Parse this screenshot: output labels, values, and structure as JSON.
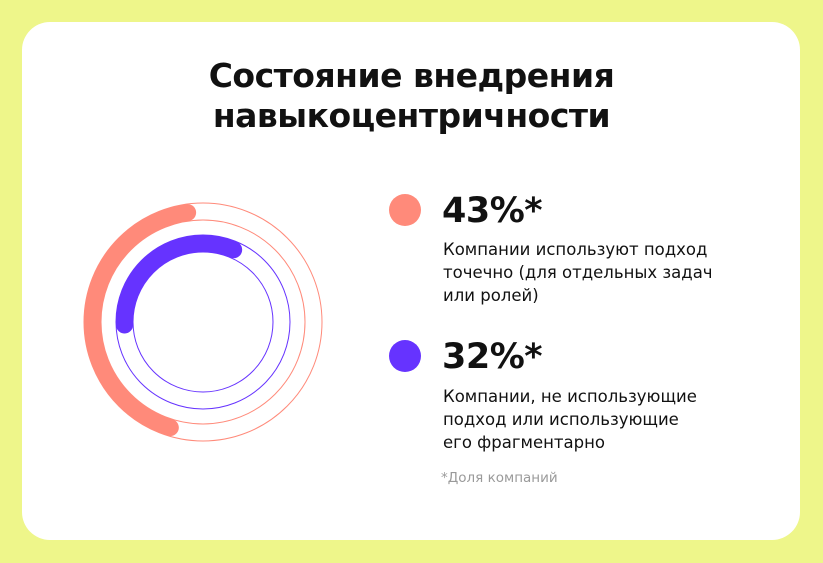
{
  "chart_data": {
    "type": "radial-bar",
    "title": "Состояние внедрения навыкоцентричности",
    "title_lines": [
      "Состояние внедрения",
      "навыкоцентричности"
    ],
    "series": [
      {
        "name": "Компании используют подход точечно (для отдельных задач или ролей)",
        "value": 43,
        "label": "43%*",
        "color": "#FF8A7A",
        "desc_lines": [
          "Компании используют подход",
          "точечно (для отдельных задач",
          "или ролей)"
        ]
      },
      {
        "name": "Компании, не использующие подход или использующие его фрагментарно",
        "value": 32,
        "label": "32%*",
        "color": "#6633FF",
        "desc_lines": [
          "Компании, не использующие",
          "подход или использующие",
          "его фрагментарно"
        ]
      }
    ],
    "unit": "%",
    "max": 100,
    "footnote": "*Доля компаний"
  },
  "colors": {
    "background": "#EEF68A",
    "card": "#FFFFFF"
  }
}
